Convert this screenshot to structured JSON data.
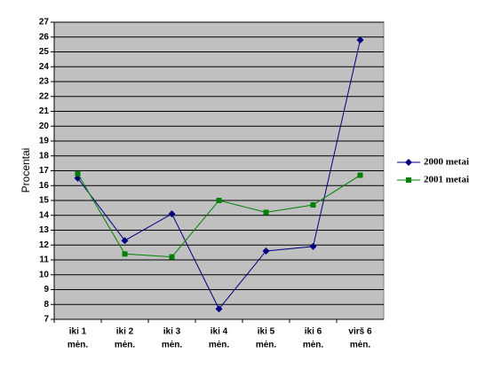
{
  "chart_data": {
    "type": "line",
    "y_label": "Procentai",
    "categories": [
      [
        "iki 1",
        "mėn."
      ],
      [
        "iki 2",
        "mėn."
      ],
      [
        "iki 3",
        "mėn."
      ],
      [
        "iki 4",
        "mėn."
      ],
      [
        "iki 5",
        "mėn."
      ],
      [
        "iki 6",
        "mėn."
      ],
      [
        "virš 6",
        "mėn."
      ]
    ],
    "series": [
      {
        "name": "2000 metai",
        "color": "#000080",
        "marker": "diamond",
        "values": [
          16.5,
          12.3,
          14.1,
          7.7,
          11.6,
          11.9,
          25.8
        ]
      },
      {
        "name": "2001 metai",
        "color": "#008000",
        "marker": "square",
        "values": [
          16.8,
          11.4,
          11.2,
          15.0,
          14.2,
          14.7,
          16.7
        ]
      }
    ],
    "ylim": [
      7,
      27
    ],
    "yticks": [
      7,
      8,
      9,
      10,
      11,
      12,
      13,
      14,
      15,
      16,
      17,
      18,
      19,
      20,
      21,
      22,
      23,
      24,
      25,
      26,
      27
    ],
    "grid": true,
    "legend": "right"
  }
}
